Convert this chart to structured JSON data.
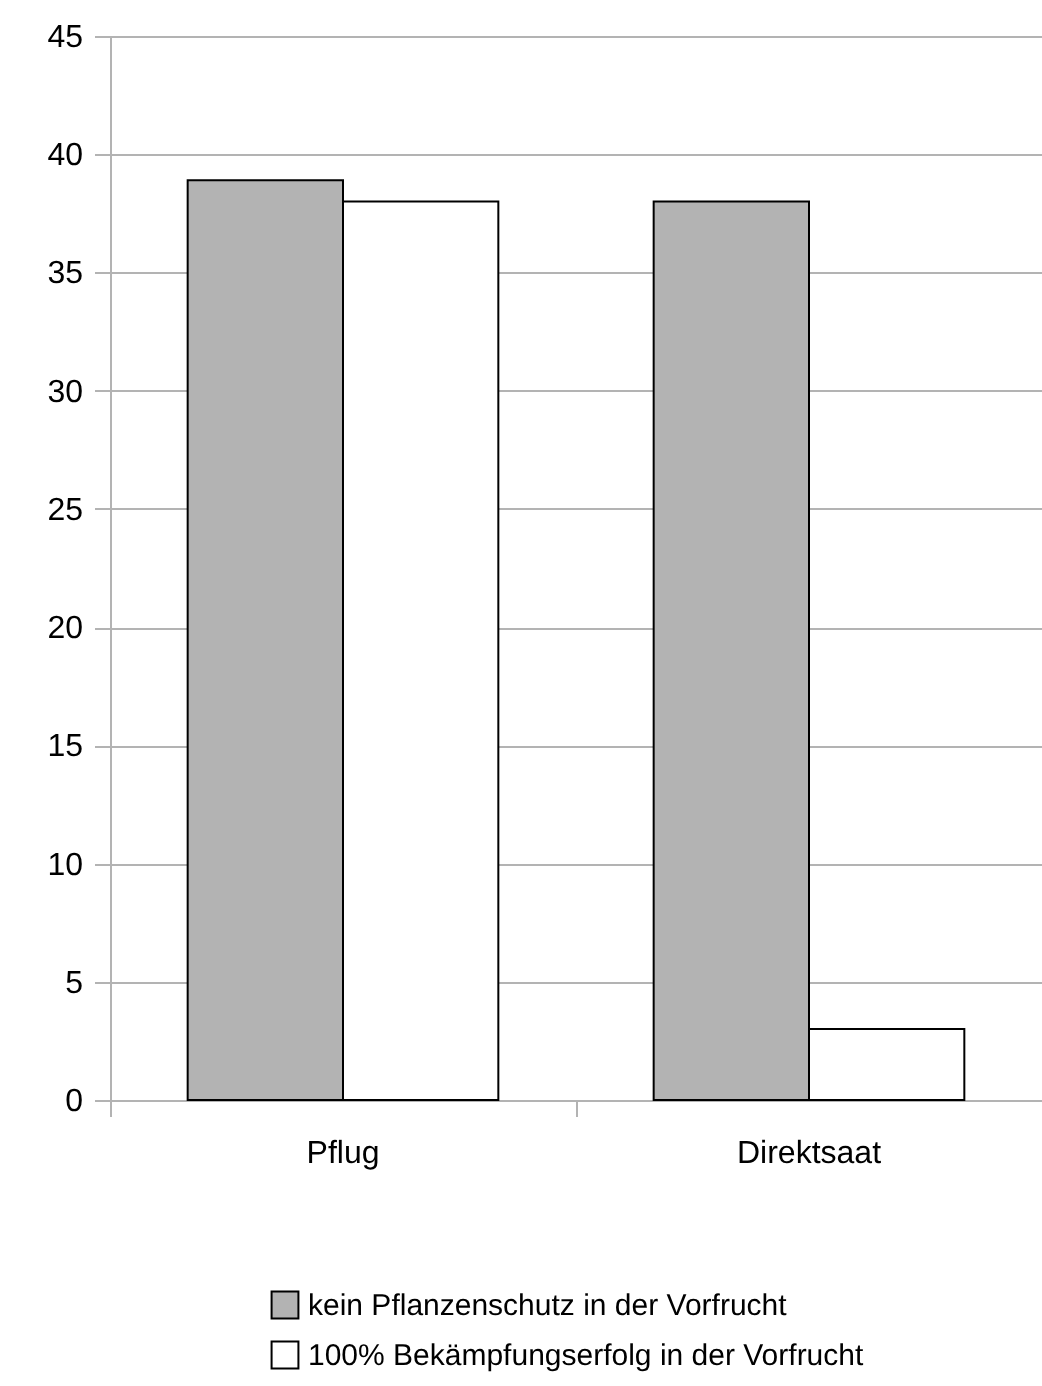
{
  "chart_data": {
    "type": "bar",
    "categories": [
      "Pflug",
      "Direktsaat"
    ],
    "series": [
      {
        "name": "kein Pflanzenschutz in der Vorfrucht",
        "color": "#b3b3b3",
        "values": [
          38.9,
          38
        ]
      },
      {
        "name": "100% Bekämpfungserfolg in der Vorfrucht",
        "color": "#ffffff",
        "values": [
          38,
          3
        ]
      }
    ],
    "ylim": [
      0,
      45
    ],
    "yticks": [
      0,
      5,
      10,
      15,
      20,
      25,
      30,
      35,
      40,
      45
    ],
    "grid": "y",
    "legend": "bottom"
  }
}
